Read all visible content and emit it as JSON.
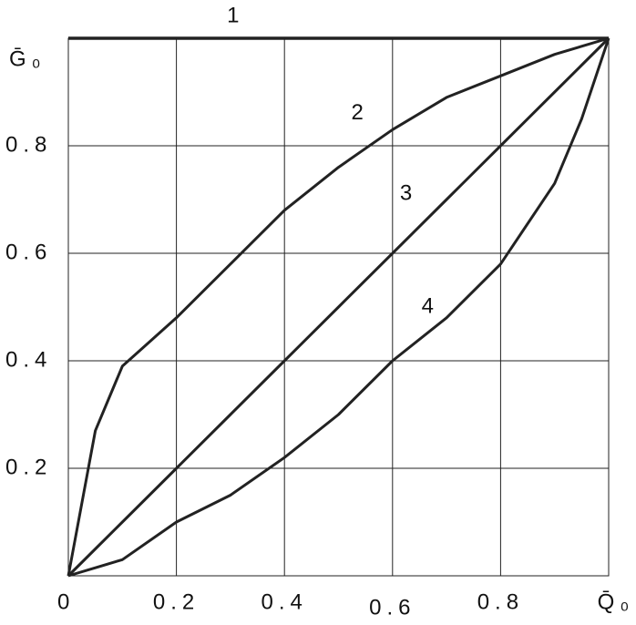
{
  "chart_data": {
    "type": "line",
    "x": [
      0,
      0.05,
      0.1,
      0.2,
      0.3,
      0.4,
      0.5,
      0.6,
      0.7,
      0.8,
      0.9,
      0.95,
      1
    ],
    "series": [
      {
        "name": "1",
        "color": "#222222",
        "values": [
          1,
          1,
          1,
          1,
          1,
          1,
          1,
          1,
          1,
          1,
          1,
          1,
          1
        ]
      },
      {
        "name": "2",
        "color": "#222222",
        "values": [
          0,
          0.27,
          0.39,
          0.48,
          0.58,
          0.68,
          0.76,
          0.83,
          0.89,
          0.93,
          0.97,
          0.985,
          1
        ]
      },
      {
        "name": "3",
        "color": "#222222",
        "values": [
          0,
          0.05,
          0.1,
          0.2,
          0.3,
          0.4,
          0.5,
          0.6,
          0.7,
          0.8,
          0.9,
          0.95,
          1
        ]
      },
      {
        "name": "4",
        "color": "#222222",
        "values": [
          0,
          0.015,
          0.03,
          0.1,
          0.15,
          0.22,
          0.3,
          0.4,
          0.48,
          0.58,
          0.73,
          0.85,
          1
        ]
      }
    ],
    "xlim": [
      0,
      1
    ],
    "ylim": [
      0,
      1
    ],
    "xticks": [
      0,
      0.2,
      0.4,
      0.6,
      0.8,
      {
        "value": 1,
        "label": "Q̄₀"
      }
    ],
    "yticks": [
      0.2,
      0.4,
      0.6,
      0.8,
      {
        "value": 1,
        "label": "Ḡ₀"
      }
    ],
    "grid": true
  }
}
